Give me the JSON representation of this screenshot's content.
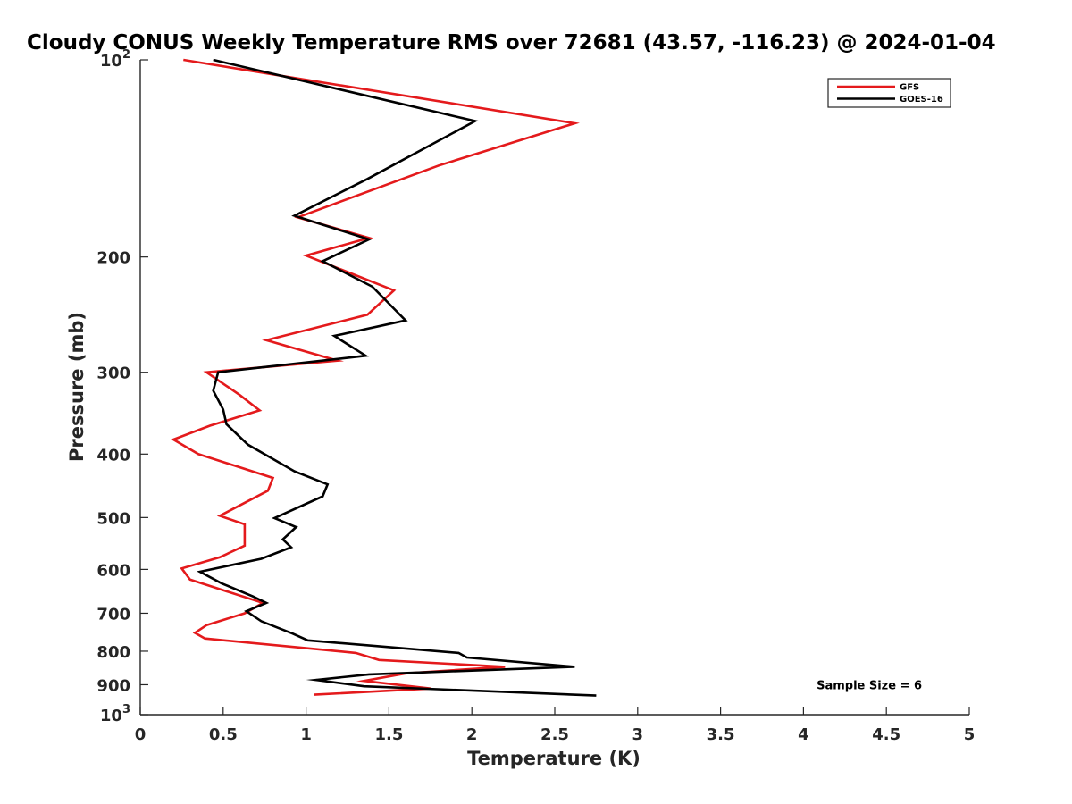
{
  "chart_data": {
    "type": "line",
    "title": "Cloudy CONUS Weekly Temperature RMS over 72681 (43.57, -116.23) @ 2024-01-04",
    "xlabel": "Temperature (K)",
    "ylabel": "Pressure (mb)",
    "xlim": [
      0,
      5
    ],
    "ylim": [
      100,
      1000
    ],
    "y_scale": "log",
    "y_reversed": true,
    "x_ticks": [
      0,
      0.5,
      1,
      1.5,
      2,
      2.5,
      3,
      3.5,
      4,
      4.5,
      5
    ],
    "x_tick_labels": [
      "0",
      "0.5",
      "1",
      "1.5",
      "2",
      "2.5",
      "3",
      "3.5",
      "4",
      "4.5",
      "5"
    ],
    "y_ticks": [
      100,
      200,
      300,
      400,
      500,
      600,
      700,
      800,
      900,
      1000
    ],
    "y_tick_labels": [
      {
        "base": "10",
        "sup": "2"
      },
      {
        "base": "200",
        "sup": ""
      },
      {
        "base": "300",
        "sup": ""
      },
      {
        "base": "400",
        "sup": ""
      },
      {
        "base": "500",
        "sup": ""
      },
      {
        "base": "600",
        "sup": ""
      },
      {
        "base": "700",
        "sup": ""
      },
      {
        "base": "800",
        "sup": ""
      },
      {
        "base": "900",
        "sup": ""
      },
      {
        "base": "10",
        "sup": "3"
      }
    ],
    "grid": false,
    "legend_position": "top-right",
    "series": [
      {
        "name": "GFS",
        "color": "#e41a1c",
        "points": [
          [
            0.26,
            100
          ],
          [
            2.62,
            125
          ],
          [
            1.8,
            145
          ],
          [
            0.95,
            174
          ],
          [
            1.38,
            187
          ],
          [
            1.0,
            199
          ],
          [
            1.53,
            225
          ],
          [
            1.37,
            245
          ],
          [
            0.76,
            268
          ],
          [
            1.19,
            288
          ],
          [
            0.4,
            300
          ],
          [
            0.6,
            325
          ],
          [
            0.72,
            343
          ],
          [
            0.42,
            362
          ],
          [
            0.2,
            380
          ],
          [
            0.35,
            400
          ],
          [
            0.8,
            435
          ],
          [
            0.77,
            455
          ],
          [
            0.48,
            497
          ],
          [
            0.63,
            512
          ],
          [
            0.63,
            552
          ],
          [
            0.48,
            575
          ],
          [
            0.25,
            598
          ],
          [
            0.3,
            622
          ],
          [
            0.74,
            675
          ],
          [
            0.63,
            700
          ],
          [
            0.4,
            730
          ],
          [
            0.33,
            750
          ],
          [
            0.39,
            765
          ],
          [
            1.3,
            805
          ],
          [
            1.44,
            825
          ],
          [
            2.2,
            845
          ],
          [
            1.6,
            865
          ],
          [
            1.35,
            888
          ],
          [
            1.75,
            912
          ],
          [
            1.05,
            932
          ]
        ]
      },
      {
        "name": "GOES-16",
        "color": "#000000",
        "points": [
          [
            0.44,
            100
          ],
          [
            2.02,
            124
          ],
          [
            1.37,
            152
          ],
          [
            0.93,
            173
          ],
          [
            1.38,
            188
          ],
          [
            1.1,
            203
          ],
          [
            1.4,
            222
          ],
          [
            1.6,
            250
          ],
          [
            1.17,
            264
          ],
          [
            1.36,
            283
          ],
          [
            0.47,
            300
          ],
          [
            0.44,
            320
          ],
          [
            0.5,
            342
          ],
          [
            0.52,
            360
          ],
          [
            0.65,
            387
          ],
          [
            0.93,
            425
          ],
          [
            1.13,
            445
          ],
          [
            1.1,
            464
          ],
          [
            0.81,
            501
          ],
          [
            0.94,
            517
          ],
          [
            0.86,
            540
          ],
          [
            0.91,
            555
          ],
          [
            0.73,
            578
          ],
          [
            0.36,
            605
          ],
          [
            0.49,
            630
          ],
          [
            0.68,
            660
          ],
          [
            0.76,
            675
          ],
          [
            0.64,
            695
          ],
          [
            0.73,
            720
          ],
          [
            0.92,
            752
          ],
          [
            1.01,
            770
          ],
          [
            1.92,
            805
          ],
          [
            1.97,
            818
          ],
          [
            2.62,
            845
          ],
          [
            1.38,
            868
          ],
          [
            1.06,
            885
          ],
          [
            1.35,
            905
          ],
          [
            2.75,
            935
          ]
        ]
      }
    ],
    "annotations": [
      {
        "text": "Sample Size = 6",
        "x": 4.3,
        "y": 900
      }
    ]
  }
}
